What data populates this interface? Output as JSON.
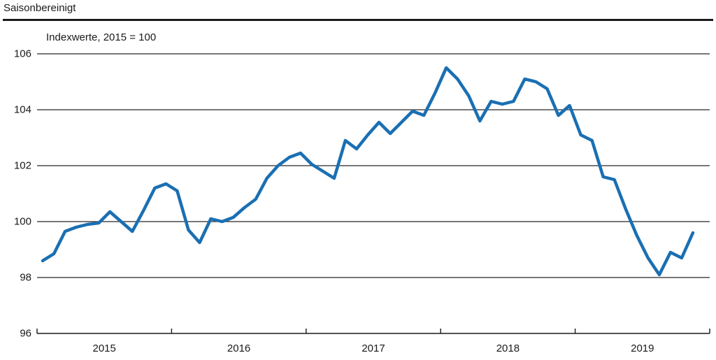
{
  "header": {
    "title": "Saisonbereinigt"
  },
  "chart_data": {
    "type": "line",
    "title": "Saisonbereinigt",
    "subtitle": "Indexwerte, 2015 = 100",
    "frequency": "monthly",
    "start": "2015-01",
    "end": "2019-11",
    "values": [
      98.6,
      98.85,
      99.65,
      99.8,
      99.9,
      99.95,
      100.35,
      100.0,
      99.65,
      100.4,
      101.2,
      101.35,
      101.1,
      99.7,
      99.25,
      100.1,
      100.0,
      100.15,
      100.5,
      100.8,
      101.55,
      102.0,
      102.3,
      102.45,
      102.05,
      101.8,
      101.55,
      102.9,
      102.6,
      103.1,
      103.55,
      103.15,
      103.55,
      103.95,
      103.8,
      104.6,
      105.5,
      105.1,
      104.5,
      103.6,
      104.3,
      104.2,
      104.3,
      105.1,
      105.0,
      104.75,
      103.8,
      104.15,
      103.1,
      102.9,
      101.6,
      101.5,
      100.45,
      99.5,
      98.7,
      98.1,
      98.9,
      98.7,
      99.6
    ],
    "x_tick_labels": [
      "2015",
      "2016",
      "2017",
      "2018",
      "2019"
    ],
    "x_slots": 60,
    "yticks": [
      96,
      98,
      100,
      102,
      104,
      106
    ],
    "ylim": [
      96,
      106
    ],
    "grid": true,
    "legend": "none",
    "line_color": "#1a6fb2",
    "grid_color": "#262626",
    "axis_color": "#1a1a1a",
    "text_color": "#1a1a1a"
  }
}
